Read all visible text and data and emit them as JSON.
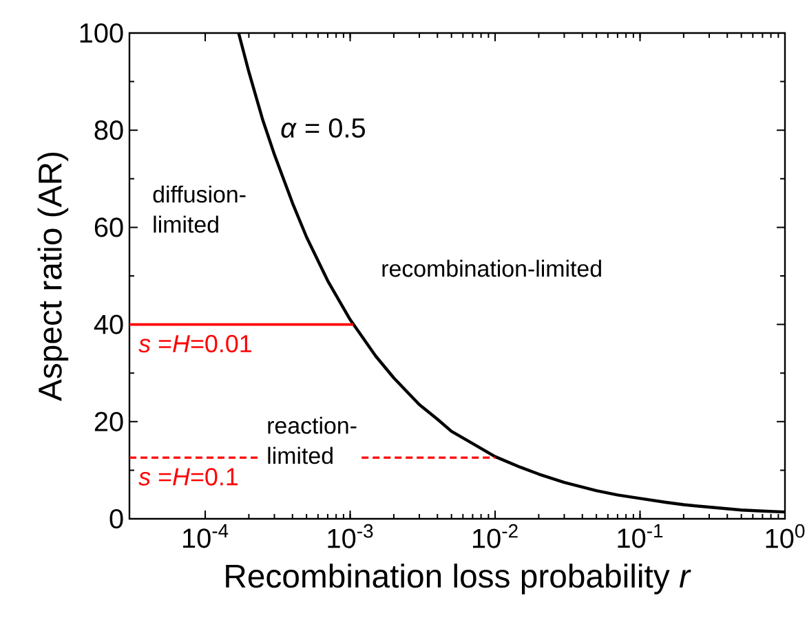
{
  "chart_data": {
    "type": "line",
    "xlabel": "Recombination loss probability *r*",
    "ylabel": "Aspect ratio (AR)",
    "log": "x",
    "xlim": [
      3e-05,
      1
    ],
    "ylim": [
      0,
      100
    ],
    "xticks": [
      {
        "value": 0.0001,
        "label": "10$^{-4}$"
      },
      {
        "value": 0.001,
        "label": "10$^{-3}$"
      },
      {
        "value": 0.01,
        "label": "10$^{-2}$"
      },
      {
        "value": 0.1,
        "label": "10$^{-1}$"
      },
      {
        "value": 1,
        "label": "10$^{0}$"
      }
    ],
    "yticks": [
      0,
      20,
      40,
      60,
      80,
      100
    ],
    "series": [
      {
        "name": "*α* = 0.5",
        "color": "#000000",
        "line_style": "solid",
        "x": [
          0.00017,
          0.0002,
          0.00025,
          0.0003,
          0.0004,
          0.0005,
          0.0007,
          0.001,
          0.0015,
          0.002,
          0.003,
          0.004,
          0.005,
          0.007,
          0.01,
          0.015,
          0.02,
          0.03,
          0.05,
          0.07,
          0.1,
          0.15,
          0.2,
          0.3,
          0.5,
          0.7,
          1
        ],
        "values": [
          100,
          92,
          82,
          75,
          65,
          58,
          49,
          41,
          33.5,
          29,
          23.5,
          20.5,
          18,
          15.5,
          12.8,
          10.6,
          9.2,
          7.5,
          5.8,
          4.9,
          4.2,
          3.4,
          2.9,
          2.4,
          1.8,
          1.6,
          1.4
        ]
      },
      {
        "color": "#ff0000",
        "line_style": "solid",
        "x": [
          3e-05,
          0.00105
        ],
        "values": [
          40,
          40
        ]
      },
      {
        "color": "#ff0000",
        "line_style": "dashed",
        "x": [
          3e-05,
          0.00024,
          0.0005,
          0.0012,
          0.01
        ],
        "values": [
          12.6,
          12.6,
          null,
          12.6,
          12.6
        ]
      }
    ],
    "annotations": [
      "diffusion-limited",
      "recombination-limited",
      "reaction-limited",
      {
        "text": "*s* =*H*=0.01",
        "x": 3e-05,
        "y": 40
      },
      {
        "text": "*s* =*H*=0.1",
        "x": 3e-05,
        "y": 12.6
      }
    ]
  }
}
